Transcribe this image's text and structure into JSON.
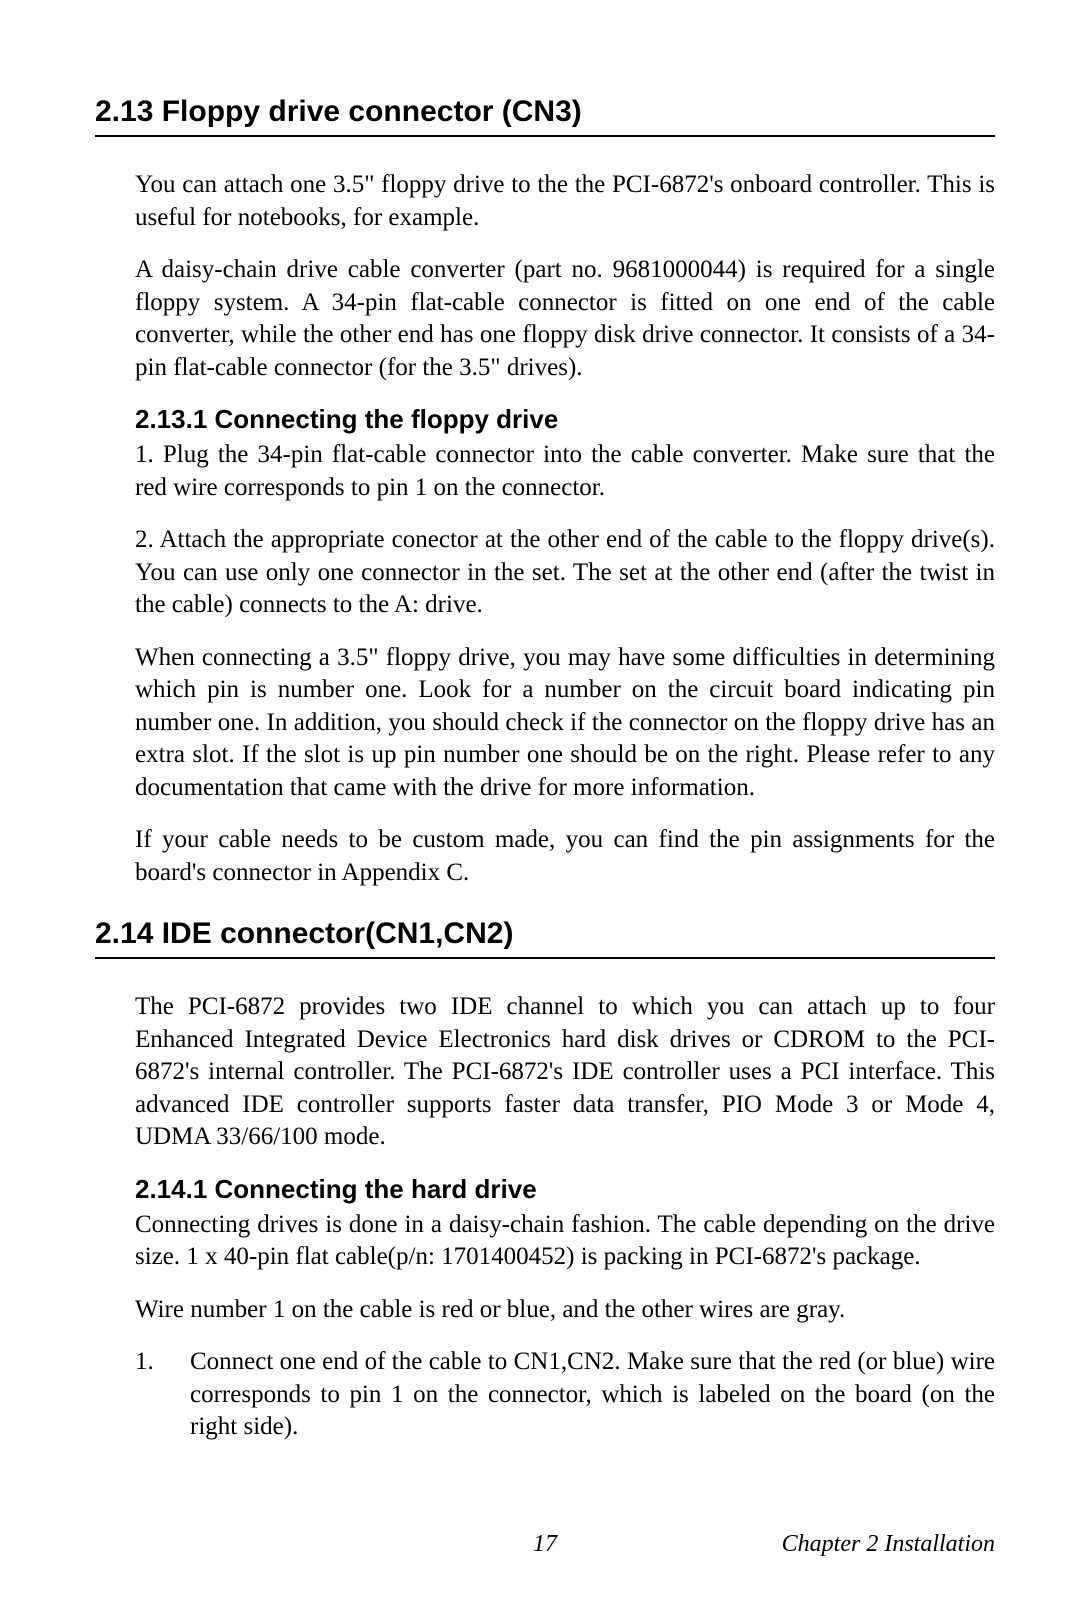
{
  "section213": {
    "heading": "2.13 Floppy drive connector (CN3)",
    "p1": "You can attach one 3.5\" floppy drive to the the PCI-6872's onboard controller. This is useful for notebooks, for example.",
    "p2": "A daisy-chain drive cable converter (part no. 9681000044) is required for a single floppy system. A 34-pin flat-cable connector is fitted on one end of the cable converter, while the other end has one floppy disk drive connector. It consists of a 34-pin flat-cable connector (for the 3.5\" drives).",
    "sub1": {
      "heading": "2.13.1 Connecting the floppy drive",
      "p1": "1. Plug the 34-pin flat-cable connector into the cable converter. Make sure that the red wire corresponds to pin 1 on the connector.",
      "p2": "2. Attach the appropriate conector at the other end of the cable to the floppy drive(s). You can use only one connector in the set. The set at the other end (after the twist in the cable) connects to the A: drive.",
      "p3": "When connecting a 3.5\" floppy drive, you may have some difficulties in determining which pin is number one. Look for a number on the circuit board indicating pin number one. In addition, you should check if the connector on the floppy drive has an extra slot. If the slot is up pin number one should be on the right. Please refer to any documentation that came with the drive for more information.",
      "p4": "If your cable needs to be custom made, you can find the pin assignments for the board's connector in Appendix C."
    }
  },
  "section214": {
    "heading": "2.14  IDE connector(CN1,CN2)",
    "p1": "The PCI-6872 provides two IDE channel to which you can attach up to four Enhanced Integrated Device Electronics hard disk drives or CDROM to the PCI-6872's internal controller. The PCI-6872's IDE controller uses a PCI  interface. This advanced IDE controller supports faster data transfer, PIO Mode 3 or Mode 4, UDMA 33/66/100 mode.",
    "sub1": {
      "heading": "2.14.1 Connecting the hard drive",
      "p1": "Connecting drives is done in a daisy-chain fashion. The cable depending on the drive size. 1 x 40-pin flat cable(p/n: 1701400452) is packing in PCI-6872's package.",
      "p2": "Wire number 1 on the cable is red or blue, and the other wires are gray.",
      "list1": {
        "num": "1.",
        "text": "Connect one end of the cable to CN1,CN2. Make sure that the red (or blue) wire corresponds to pin 1 on the connector, which is labeled on the board (on the right side)."
      }
    }
  },
  "footer": {
    "page": "17",
    "chapter": "Chapter 2  Installation"
  }
}
